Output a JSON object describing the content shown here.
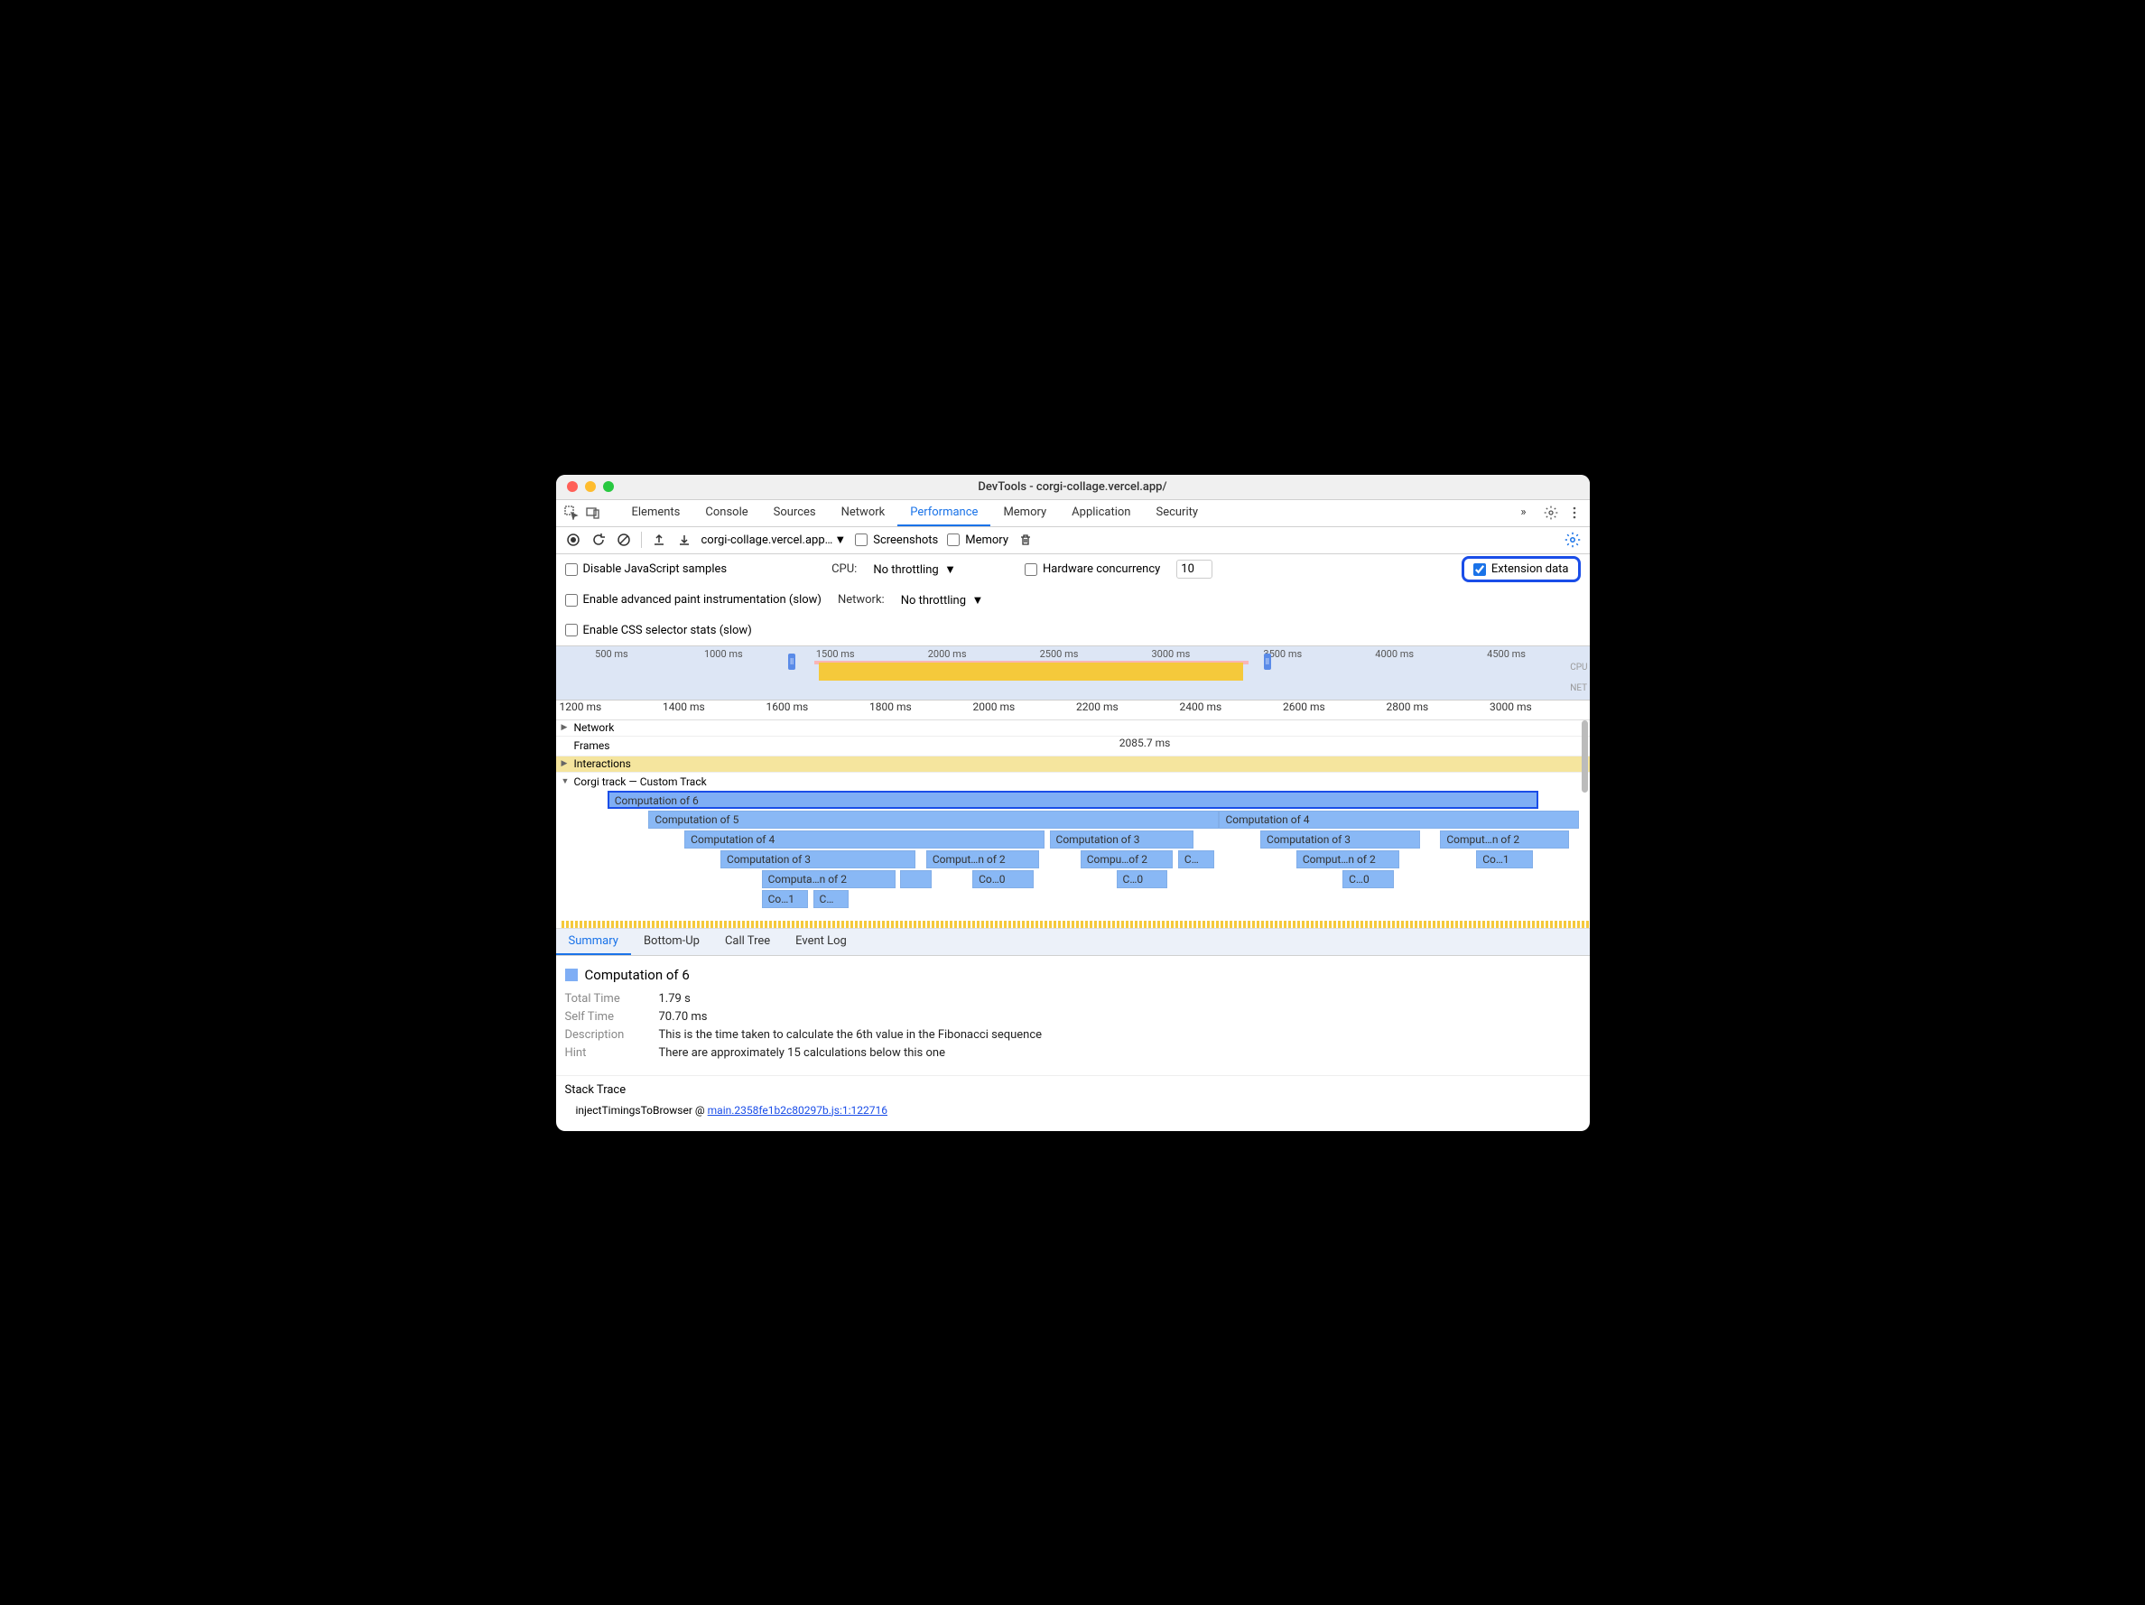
{
  "window": {
    "title": "DevTools - corgi-collage.vercel.app/",
    "traffic_colors": [
      "#ff5f57",
      "#febc2e",
      "#28c840"
    ]
  },
  "tabs": {
    "items": [
      "Elements",
      "Console",
      "Sources",
      "Network",
      "Performance",
      "Memory",
      "Application",
      "Security"
    ],
    "active": "Performance",
    "overflow": "»"
  },
  "toolbar": {
    "url": "corgi-collage.vercel.app…",
    "screenshots_label": "Screenshots",
    "memory_label": "Memory"
  },
  "settings": {
    "disable_js": "Disable JavaScript samples",
    "cpu_label": "CPU:",
    "cpu_value": "No throttling",
    "hw_label": "Hardware concurrency",
    "hw_value": "10",
    "ext_label": "Extension data",
    "enable_paint": "Enable advanced paint instrumentation (slow)",
    "network_label": "Network:",
    "network_value": "No throttling",
    "enable_css": "Enable CSS selector stats (slow)"
  },
  "overview": {
    "ticks": [
      "500 ms",
      "1000 ms",
      "1500 ms",
      "2000 ms",
      "2500 ms",
      "3000 ms",
      "3500 ms",
      "4000 ms",
      "4500 ms"
    ],
    "labels": [
      "CPU",
      "NET"
    ],
    "yellow_band": {
      "left_pct": 25.5,
      "width_pct": 41
    },
    "pink_band": {
      "left_pct": 25,
      "width_pct": 42
    },
    "handle_left_pct": 22.5,
    "handle_right_pct": 68.5
  },
  "ruler": {
    "ticks": [
      "1200 ms",
      "1400 ms",
      "1600 ms",
      "1800 ms",
      "2000 ms",
      "2200 ms",
      "2400 ms",
      "2600 ms",
      "2800 ms",
      "3000 ms"
    ]
  },
  "tracks": {
    "network": "Network",
    "frames": "Frames",
    "frames_value": "2085.7 ms",
    "interactions": "Interactions",
    "custom": "Corgi track — Custom Track"
  },
  "flame": {
    "color_normal": "#89b8f5",
    "color_selected": "#7faef5",
    "bars": [
      {
        "label": "Computation of 6",
        "row": 0,
        "left": 4.5,
        "width": 90.5,
        "selected": true
      },
      {
        "label": "Computation of 5",
        "row": 1,
        "left": 8.5,
        "width": 55.5
      },
      {
        "label": "Computation of 4",
        "row": 1,
        "left": 64.0,
        "width": 35.0
      },
      {
        "label": "Computation of 4",
        "row": 2,
        "left": 12.0,
        "width": 35.0
      },
      {
        "label": "Computation of 3",
        "row": 2,
        "left": 47.5,
        "width": 14.0
      },
      {
        "label": "Computation of 3",
        "row": 2,
        "left": 68.0,
        "width": 15.5
      },
      {
        "label": "Comput…n of 2",
        "row": 2,
        "left": 85.5,
        "width": 12.5
      },
      {
        "label": "Computation of 3",
        "row": 3,
        "left": 15.5,
        "width": 19.0
      },
      {
        "label": "Comput…n of 2",
        "row": 3,
        "left": 35.5,
        "width": 11.0
      },
      {
        "label": "Compu…of 2",
        "row": 3,
        "left": 50.5,
        "width": 9.0
      },
      {
        "label": "C…",
        "row": 3,
        "left": 60.0,
        "width": 3.5
      },
      {
        "label": "Comput…n of 2",
        "row": 3,
        "left": 71.5,
        "width": 10.0
      },
      {
        "label": "Co…1",
        "row": 3,
        "left": 89.0,
        "width": 5.5
      },
      {
        "label": "Computa…n of 2",
        "row": 4,
        "left": 19.5,
        "width": 13.0
      },
      {
        "label": "",
        "row": 4,
        "left": 33.0,
        "width": 3.0
      },
      {
        "label": "Co…0",
        "row": 4,
        "left": 40.0,
        "width": 6.0
      },
      {
        "label": "C…0",
        "row": 4,
        "left": 54.0,
        "width": 5.0
      },
      {
        "label": "C…0",
        "row": 4,
        "left": 76.0,
        "width": 5.0
      },
      {
        "label": "Co…1",
        "row": 5,
        "left": 19.5,
        "width": 4.5
      },
      {
        "label": "C…",
        "row": 5,
        "left": 24.5,
        "width": 3.5
      }
    ]
  },
  "detail_tabs": {
    "items": [
      "Summary",
      "Bottom-Up",
      "Call Tree",
      "Event Log"
    ],
    "active": "Summary"
  },
  "summary": {
    "title": "Computation of 6",
    "total_time_k": "Total Time",
    "total_time_v": "1.79 s",
    "self_time_k": "Self Time",
    "self_time_v": "70.70 ms",
    "desc_k": "Description",
    "desc_v": "This is the time taken to calculate the 6th value in the Fibonacci sequence",
    "hint_k": "Hint",
    "hint_v": "There are approximately 15 calculations below this one"
  },
  "stack": {
    "title": "Stack Trace",
    "fn": "injectTimingsToBrowser @ ",
    "link": "main.2358fe1b2c80297b.js:1:122716"
  }
}
